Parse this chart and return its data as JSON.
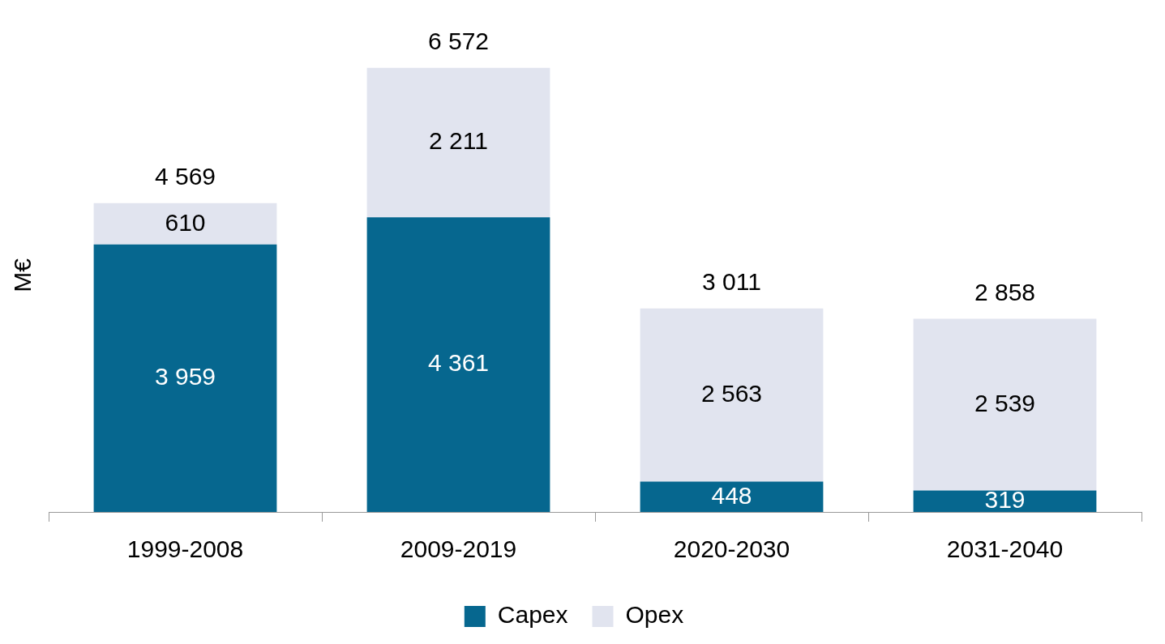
{
  "chart_data": {
    "type": "bar",
    "stacked": true,
    "ylabel": "M€",
    "categories": [
      "1999-2008",
      "2009-2019",
      "2020-2030",
      "2031-2040"
    ],
    "series": [
      {
        "name": "Capex",
        "color": "#06678f",
        "values": [
          3959,
          4361,
          448,
          319
        ]
      },
      {
        "name": "Opex",
        "color": "#e1e4ef",
        "values": [
          610,
          2211,
          2563,
          2539
        ]
      }
    ],
    "data_labels": true,
    "totals": [
      "4 569",
      "6 572",
      "3 011",
      "2 858"
    ],
    "legend": "bottom",
    "grid": false
  }
}
